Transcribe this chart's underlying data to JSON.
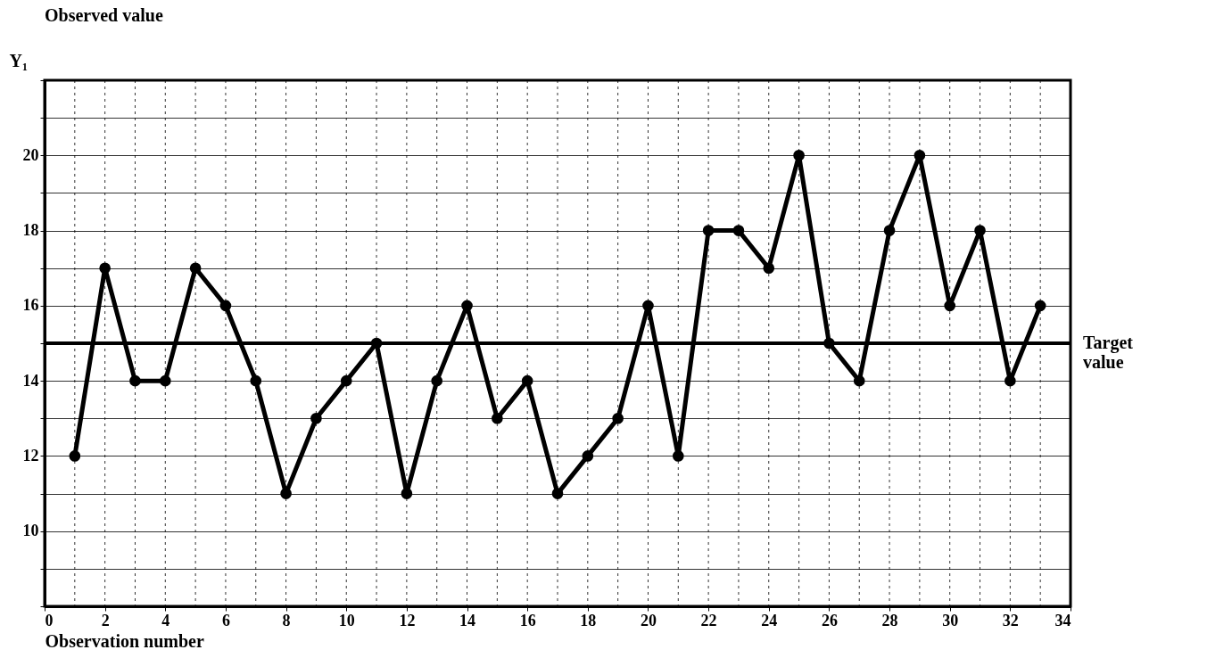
{
  "chart_data": {
    "type": "line",
    "title": "Observed value",
    "ylabel": "Y₁",
    "xlabel": "Observation number",
    "x": [
      1,
      2,
      3,
      4,
      5,
      6,
      7,
      8,
      9,
      10,
      11,
      12,
      13,
      14,
      15,
      16,
      17,
      18,
      19,
      20,
      21,
      22,
      23,
      24,
      25,
      26,
      27,
      28,
      29,
      30,
      31,
      32,
      33
    ],
    "series": [
      {
        "color": "#000000",
        "values": [
          12,
          17,
          14,
          14,
          17,
          16,
          14,
          11,
          13,
          14,
          15,
          11,
          14,
          16,
          13,
          14,
          11,
          12,
          13,
          16,
          12,
          18,
          18,
          17,
          20,
          15,
          14,
          18,
          20,
          16,
          18,
          14,
          16
        ]
      }
    ],
    "xlim": [
      0,
      34
    ],
    "xticks": [
      0,
      {
        "value": 1,
        "label": null
      },
      2,
      {
        "value": 3,
        "label": null
      },
      4,
      {
        "value": 5,
        "label": null
      },
      6,
      {
        "value": 7,
        "label": null
      },
      8,
      {
        "value": 9,
        "label": null
      },
      10,
      {
        "value": 11,
        "label": null
      },
      12,
      {
        "value": 13,
        "label": null
      },
      14,
      {
        "value": 15,
        "label": null
      },
      16,
      {
        "value": 17,
        "label": null
      },
      18,
      {
        "value": 19,
        "label": null
      },
      20,
      {
        "value": 21,
        "label": null
      },
      22,
      {
        "value": 23,
        "label": null
      },
      24,
      {
        "value": 25,
        "label": null
      },
      26,
      {
        "value": 27,
        "label": null
      },
      28,
      {
        "value": 29,
        "label": null
      },
      30,
      {
        "value": 31,
        "label": null
      },
      32,
      {
        "value": 33,
        "label": null
      },
      34
    ],
    "ylim": [
      8,
      22
    ],
    "yticks": [
      {
        "value": 8,
        "label": null
      },
      {
        "value": 9,
        "label": null
      },
      10,
      {
        "value": 11,
        "label": null
      },
      12,
      {
        "value": 13,
        "label": null
      },
      14,
      {
        "value": 15,
        "label": null
      },
      16,
      {
        "value": 17,
        "label": null
      },
      18,
      {
        "value": 19,
        "label": null
      },
      20,
      {
        "value": 21,
        "label": null
      },
      {
        "value": 22,
        "label": null
      }
    ],
    "ref_lines": [
      {
        "axis": "y",
        "value": 15,
        "label": "Target value"
      }
    ],
    "grid": true,
    "marker": "circle",
    "line_style": "solid"
  }
}
